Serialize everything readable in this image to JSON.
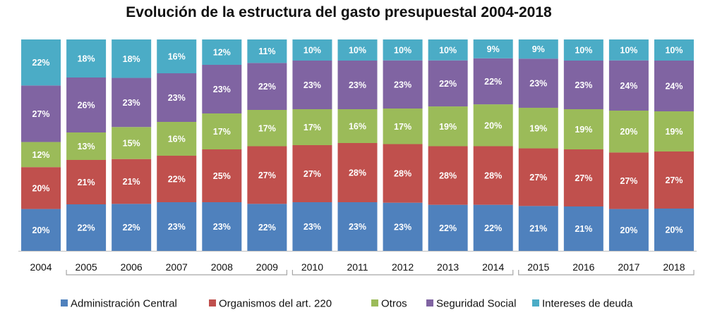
{
  "chart_data": {
    "type": "bar",
    "stacked": true,
    "title": "Evolución de la estructura del gasto presupuestal 2004-2018",
    "xlabel": "",
    "ylabel": "",
    "ylim": [
      0,
      100
    ],
    "legend_position": "bottom",
    "grid": false,
    "categories": [
      "2004",
      "2005",
      "2006",
      "2007",
      "2008",
      "2009",
      "2010",
      "2011",
      "2012",
      "2013",
      "2014",
      "2015",
      "2016",
      "2017",
      "2018"
    ],
    "groups": [
      {
        "categories": [
          "2005",
          "2006",
          "2007",
          "2008",
          "2009"
        ]
      },
      {
        "categories": [
          "2010",
          "2011",
          "2012",
          "2013",
          "2014"
        ]
      },
      {
        "categories": [
          "2015",
          "2016",
          "2017",
          "2018"
        ]
      }
    ],
    "series": [
      {
        "name": "Administración Central",
        "color": "#4f81bd",
        "values": [
          20,
          22,
          22,
          23,
          23,
          22,
          23,
          23,
          23,
          22,
          22,
          21,
          21,
          20,
          20
        ]
      },
      {
        "name": "Organismos del art. 220",
        "color": "#c0504d",
        "values": [
          20,
          21,
          21,
          22,
          25,
          27,
          27,
          28,
          28,
          28,
          28,
          27,
          27,
          27,
          27
        ]
      },
      {
        "name": "Otros",
        "color": "#9bbb59",
        "values": [
          12,
          13,
          15,
          16,
          17,
          17,
          17,
          16,
          17,
          19,
          20,
          19,
          19,
          20,
          19
        ]
      },
      {
        "name": "Seguridad Social",
        "color": "#8064a2",
        "values": [
          27,
          26,
          23,
          23,
          23,
          22,
          23,
          23,
          23,
          22,
          22,
          23,
          23,
          24,
          24
        ]
      },
      {
        "name": "Intereses de deuda",
        "color": "#4bacc6",
        "values": [
          22,
          18,
          18,
          16,
          12,
          11,
          10,
          10,
          10,
          10,
          9,
          9,
          10,
          10,
          10
        ]
      }
    ]
  }
}
